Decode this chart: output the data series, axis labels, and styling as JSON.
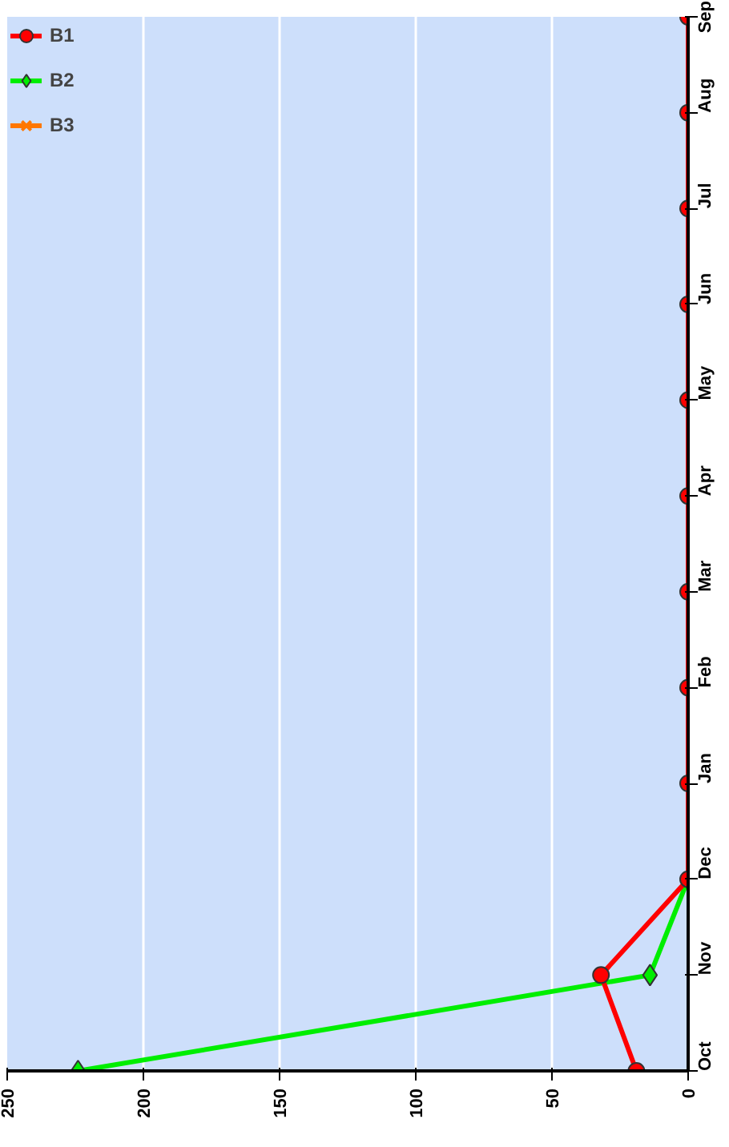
{
  "chart_data": {
    "type": "line",
    "orientation": "horizontal",
    "categories": [
      "Sep",
      "Aug",
      "Jul",
      "Jun",
      "May",
      "Apr",
      "Mar",
      "Feb",
      "Jan",
      "Dec",
      "Nov",
      "Oct"
    ],
    "series": [
      {
        "name": "B1",
        "color": "#ff0000",
        "marker": "circle",
        "values": [
          0,
          0,
          0,
          0,
          0,
          0,
          0,
          0,
          0,
          0,
          32,
          19
        ]
      },
      {
        "name": "B2",
        "color": "#00ee00",
        "marker": "diamond",
        "values": [
          null,
          null,
          null,
          null,
          null,
          null,
          null,
          null,
          null,
          0,
          14,
          224
        ]
      },
      {
        "name": "B3",
        "color": "#ff7700",
        "marker": "x",
        "values": [
          null,
          null,
          null,
          null,
          null,
          null,
          null,
          null,
          null,
          null,
          null,
          null
        ]
      }
    ],
    "xlim": [
      250,
      0
    ],
    "xticks": [
      0,
      50,
      100,
      150,
      200,
      250
    ],
    "grid": "x",
    "legend": "top left"
  }
}
